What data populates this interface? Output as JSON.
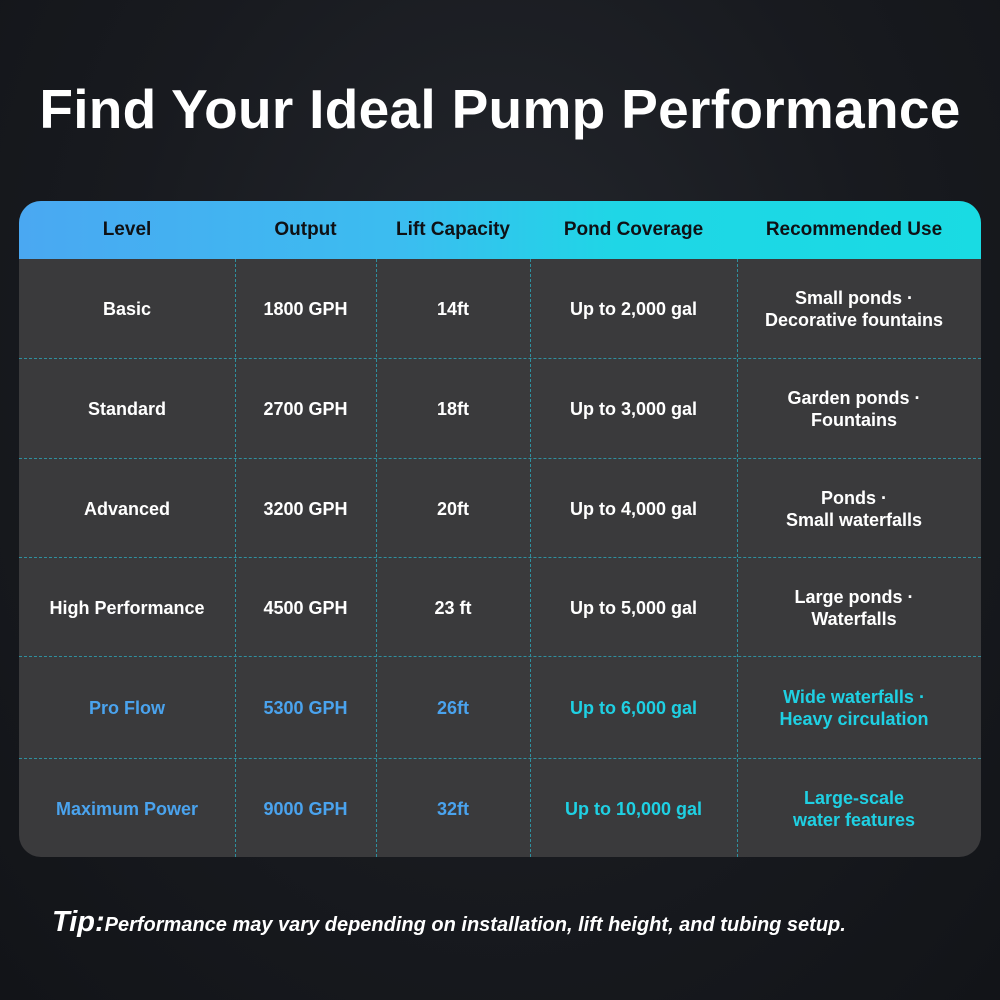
{
  "title": "Find Your Ideal Pump Performance",
  "table": {
    "headers": [
      "Level",
      "Output",
      "Lift Capacity",
      "Pond Coverage",
      "Recommended Use"
    ],
    "rows": [
      {
        "level": "Basic",
        "output": "1800 GPH",
        "lift": "14ft",
        "coverage": "Up to 2,000 gal",
        "use_line1": "Small ponds ·",
        "use_line2": "Decorative fountains"
      },
      {
        "level": "Standard",
        "output": "2700 GPH",
        "lift": "18ft",
        "coverage": "Up to 3,000 gal",
        "use_line1": "Garden ponds ·",
        "use_line2": "Fountains"
      },
      {
        "level": "Advanced",
        "output": "3200 GPH",
        "lift": "20ft",
        "coverage": "Up to 4,000 gal",
        "use_line1": "Ponds ·",
        "use_line2": "Small waterfalls"
      },
      {
        "level": "High Performance",
        "output": "4500 GPH",
        "lift": "23 ft",
        "coverage": "Up to 5,000 gal",
        "use_line1": "Large ponds ·",
        "use_line2": "Waterfalls"
      },
      {
        "level": "Pro Flow",
        "output": "5300 GPH",
        "lift": "26ft",
        "coverage": "Up to 6,000 gal",
        "use_line1": "Wide waterfalls ·",
        "use_line2": "Heavy circulation"
      },
      {
        "level": "Maximum Power",
        "output": "9000 GPH",
        "lift": "32ft",
        "coverage": "Up to 10,000 gal",
        "use_line1": "Large-scale",
        "use_line2": "water features"
      }
    ]
  },
  "tip": {
    "label": "Tip:",
    "text": "Performance may vary depending on installation, lift height, and tubing setup."
  },
  "colors": {
    "header_start": "#4aa8f2",
    "header_end": "#19dbe3",
    "highlight_blue": "#4aa3ee",
    "highlight_cyan": "#1fd0e3",
    "table_bg": "#3a3a3c"
  }
}
